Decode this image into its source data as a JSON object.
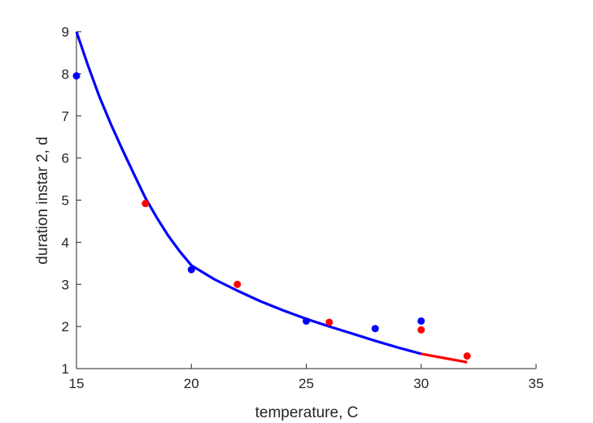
{
  "chart_data": {
    "type": "scatter",
    "title": "",
    "xlabel": "temperature, C",
    "ylabel": "duration instar 2, d",
    "xlim": [
      15,
      35
    ],
    "ylim": [
      1,
      9
    ],
    "xticks": [
      15,
      20,
      25,
      30,
      35
    ],
    "yticks": [
      1,
      2,
      3,
      4,
      5,
      6,
      7,
      8,
      9
    ],
    "grid": false,
    "legend": "none",
    "series": [
      {
        "kind": "points",
        "color": "#0000ff",
        "x": [
          15,
          20,
          25,
          28,
          30
        ],
        "y": [
          7.95,
          3.35,
          2.13,
          1.95,
          2.13
        ]
      },
      {
        "kind": "points",
        "color": "#ff0000",
        "x": [
          18,
          22,
          26,
          30,
          32
        ],
        "y": [
          4.92,
          3.0,
          2.1,
          1.92,
          1.3
        ]
      },
      {
        "kind": "line",
        "color": "#0000ff",
        "x": [
          15,
          15.5,
          16,
          16.5,
          17,
          17.5,
          18,
          18.5,
          19,
          19.5,
          20,
          21,
          22,
          23,
          24,
          25,
          26,
          27,
          28,
          29,
          30
        ],
        "y": [
          9.0,
          8.2,
          7.45,
          6.8,
          6.2,
          5.62,
          5.05,
          4.58,
          4.15,
          3.78,
          3.45,
          3.12,
          2.85,
          2.6,
          2.38,
          2.18,
          2.0,
          1.83,
          1.66,
          1.5,
          1.35
        ]
      },
      {
        "kind": "line",
        "color": "#ff0000",
        "x": [
          30,
          30.5,
          31,
          31.5,
          32
        ],
        "y": [
          1.35,
          1.3,
          1.25,
          1.2,
          1.15
        ]
      }
    ]
  }
}
